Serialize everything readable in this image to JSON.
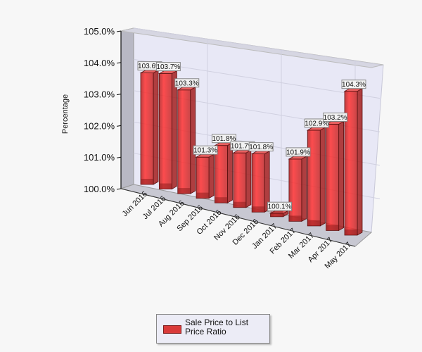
{
  "chart_data": {
    "type": "bar",
    "title": "",
    "xlabel": "",
    "ylabel": "Percentage",
    "ylim": [
      100.0,
      105.0
    ],
    "yticks": [
      "100.0%",
      "101.0%",
      "102.0%",
      "103.0%",
      "104.0%",
      "105.0%"
    ],
    "grid": true,
    "style": "3d",
    "legend_position": "bottom",
    "categories": [
      "Jun 2016",
      "Jul 2016",
      "Aug 2016",
      "Sep 2016",
      "Oct 2016",
      "Nov 2016",
      "Dec 2016",
      "Jan 2017",
      "Feb 2017",
      "Mar 2017",
      "Apr 2017",
      "May 2017"
    ],
    "series": [
      {
        "name": "Sale Price to List Price Ratio",
        "color": "#e03030",
        "values": [
          103.6,
          103.7,
          103.3,
          101.3,
          101.8,
          101.7,
          101.8,
          100.1,
          101.9,
          102.9,
          103.2,
          104.3
        ],
        "labels": [
          "103.6%",
          "103.7%",
          "103.3%",
          "101.3%",
          "101.8%",
          "101.7%",
          "101.8%",
          "100.1%",
          "101.9%",
          "102.9%",
          "103.2%",
          "104.3%"
        ]
      }
    ]
  },
  "legend": {
    "label": "Sale Price to List Price Ratio"
  }
}
